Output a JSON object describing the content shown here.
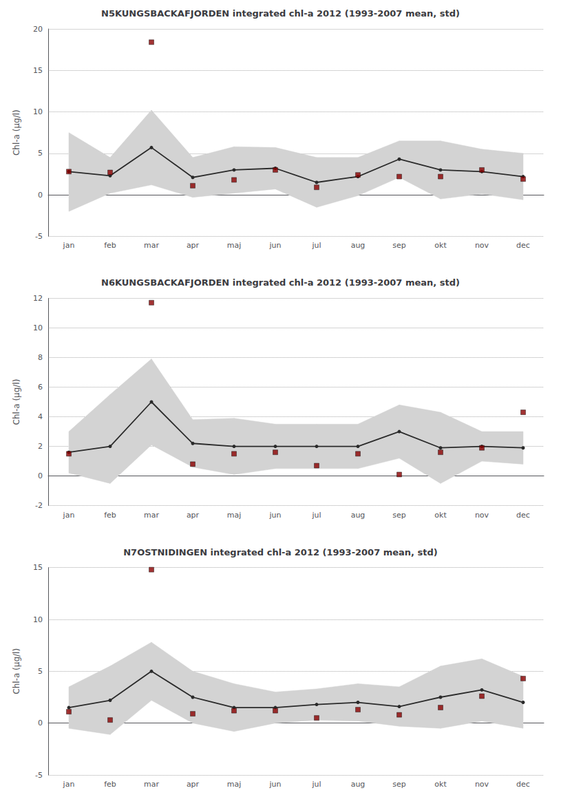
{
  "chart_data": [
    {
      "type": "line",
      "title": "N5KUNGSBACKAFJORDEN integrated chl-a 2012 (1993-2007 mean, std)",
      "ylabel": "Chl-a (µg/l)",
      "categories": [
        "jan",
        "feb",
        "mar",
        "apr",
        "maj",
        "jun",
        "jul",
        "aug",
        "sep",
        "okt",
        "nov",
        "dec"
      ],
      "ylim": [
        -5,
        20
      ],
      "yticks": [
        -5,
        0,
        5,
        10,
        15,
        20
      ],
      "grid": true,
      "series": [
        {
          "type": "band",
          "color": "#d3d3d3",
          "lower": [
            -2.0,
            0.2,
            1.2,
            -0.3,
            0.2,
            0.7,
            -1.5,
            -0.1,
            2.1,
            -0.5,
            0.1,
            -0.6
          ],
          "upper": [
            7.5,
            4.5,
            10.2,
            4.5,
            5.8,
            5.7,
            4.5,
            4.5,
            6.5,
            6.5,
            5.5,
            5.0
          ]
        },
        {
          "type": "line",
          "color": "#2a2a2a",
          "marker": "circle",
          "values": [
            2.8,
            2.3,
            5.7,
            2.1,
            3.0,
            3.2,
            1.5,
            2.2,
            4.3,
            3.0,
            2.8,
            2.2
          ]
        },
        {
          "type": "scatter",
          "color": "#8b0000",
          "marker": "square",
          "values": [
            2.8,
            2.7,
            18.4,
            1.1,
            1.8,
            3.0,
            0.9,
            2.4,
            2.2,
            2.2,
            3.0,
            1.9
          ]
        }
      ]
    },
    {
      "type": "line",
      "title": "N6KUNGSBACKAFJORDEN integrated chl-a 2012 (1993-2007 mean, std)",
      "ylabel": "Chl-a (µg/l)",
      "categories": [
        "jan",
        "feb",
        "mar",
        "apr",
        "maj",
        "jun",
        "jul",
        "aug",
        "sep",
        "okt",
        "nov",
        "dec"
      ],
      "ylim": [
        -2,
        12
      ],
      "yticks": [
        -2,
        0,
        2,
        4,
        6,
        8,
        10,
        12
      ],
      "grid": true,
      "series": [
        {
          "type": "band",
          "color": "#d3d3d3",
          "lower": [
            0.2,
            -0.5,
            2.1,
            0.6,
            0.1,
            0.5,
            0.5,
            0.5,
            1.2,
            -0.5,
            1.0,
            0.8
          ],
          "upper": [
            3.0,
            5.5,
            7.9,
            3.8,
            3.9,
            3.5,
            3.5,
            3.5,
            4.8,
            4.3,
            3.0,
            3.0
          ]
        },
        {
          "type": "line",
          "color": "#2a2a2a",
          "marker": "circle",
          "values": [
            1.6,
            2.0,
            5.0,
            2.2,
            2.0,
            2.0,
            2.0,
            2.0,
            3.0,
            1.9,
            2.0,
            1.9
          ]
        },
        {
          "type": "scatter",
          "color": "#8b0000",
          "marker": "square",
          "values": [
            1.5,
            null,
            11.7,
            0.8,
            1.5,
            1.6,
            0.7,
            1.5,
            0.1,
            1.6,
            1.9,
            4.3
          ]
        }
      ]
    },
    {
      "type": "line",
      "title": "N7OSTNIDINGEN integrated chl-a 2012 (1993-2007 mean, std)",
      "ylabel": "Chl-a (µg/l)",
      "categories": [
        "jan",
        "feb",
        "mar",
        "apr",
        "maj",
        "jun",
        "jul",
        "aug",
        "sep",
        "okt",
        "nov",
        "dec"
      ],
      "ylim": [
        -5,
        15
      ],
      "yticks": [
        -5,
        0,
        5,
        10,
        15
      ],
      "grid": true,
      "series": [
        {
          "type": "band",
          "color": "#d3d3d3",
          "lower": [
            -0.5,
            -1.1,
            2.2,
            0.0,
            -0.8,
            0.0,
            0.3,
            0.2,
            -0.3,
            -0.5,
            0.2,
            -0.5
          ],
          "upper": [
            3.5,
            5.5,
            7.8,
            5.0,
            3.8,
            3.0,
            3.3,
            3.8,
            3.5,
            5.5,
            6.2,
            4.5
          ]
        },
        {
          "type": "line",
          "color": "#2a2a2a",
          "marker": "circle",
          "values": [
            1.5,
            2.2,
            5.0,
            2.5,
            1.5,
            1.5,
            1.8,
            2.0,
            1.6,
            2.5,
            3.2,
            2.0
          ]
        },
        {
          "type": "scatter",
          "color": "#8b0000",
          "marker": "square",
          "values": [
            1.1,
            0.3,
            14.8,
            0.9,
            1.2,
            1.2,
            0.5,
            1.3,
            0.8,
            1.5,
            2.6,
            4.3
          ]
        }
      ]
    }
  ]
}
